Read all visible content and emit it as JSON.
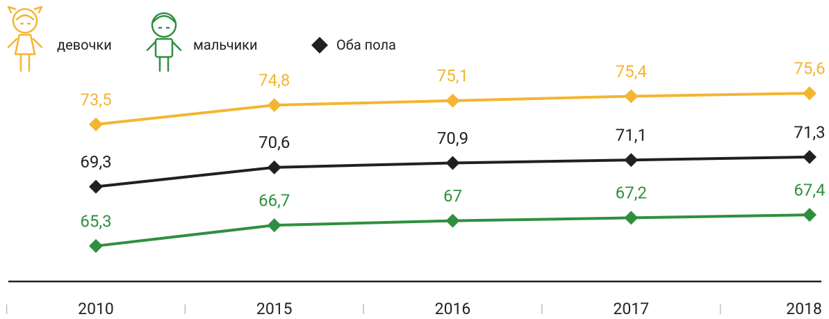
{
  "chart_data": {
    "type": "line",
    "categories": [
      "2010",
      "2015",
      "2016",
      "2017",
      "2018"
    ],
    "series": [
      {
        "name": "девочки",
        "color": "#f4b532",
        "values": [
          73.5,
          74.8,
          75.1,
          75.4,
          75.6
        ],
        "value_labels": [
          "73,5",
          "74,8",
          "75,1",
          "75,4",
          "75,6"
        ]
      },
      {
        "name": "мальчики",
        "color": "#2f8f3f",
        "values": [
          65.3,
          66.7,
          67,
          67.2,
          67.4
        ],
        "value_labels": [
          "65,3",
          "66,7",
          "67",
          "67,2",
          "67,4"
        ]
      },
      {
        "name": "Оба пола",
        "color": "#231f20",
        "values": [
          69.3,
          70.6,
          70.9,
          71.1,
          71.3
        ],
        "value_labels": [
          "69,3",
          "70,6",
          "70,9",
          "71,1",
          "71,3"
        ]
      }
    ],
    "ylim": [
      63,
      78
    ]
  }
}
